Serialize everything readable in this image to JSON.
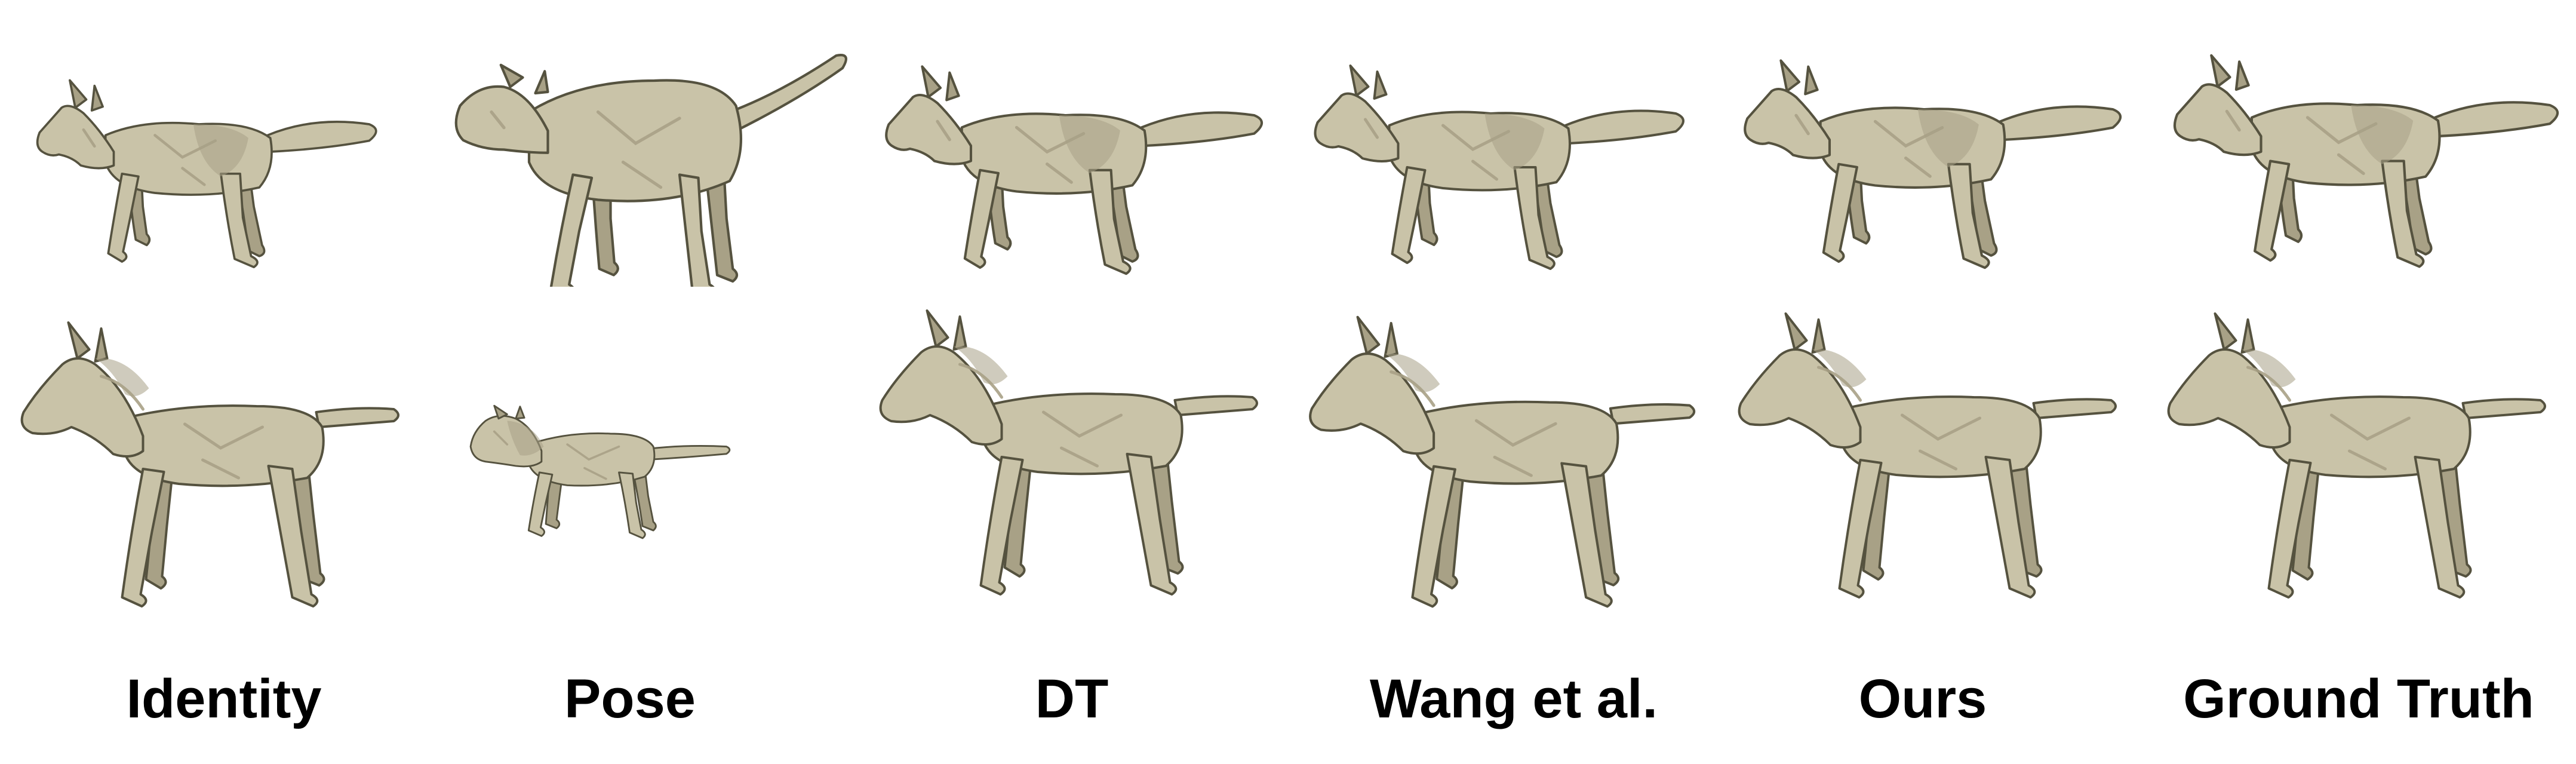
{
  "figure": {
    "mesh_fill": "#c9c3a8",
    "mesh_shade": "#a8a186",
    "mesh_edge": "#55523f",
    "columns": [
      {
        "label": "Identity"
      },
      {
        "label": "Pose"
      },
      {
        "label": "DT"
      },
      {
        "label": "Wang et al."
      },
      {
        "label": "Ours"
      },
      {
        "label": "Ground Truth"
      }
    ],
    "rows": [
      {
        "subject": "wolf"
      },
      {
        "subject": "horse"
      }
    ],
    "cells": [
      [
        {
          "model": "wolf",
          "variant": "identity"
        },
        {
          "model": "calf",
          "variant": "pose"
        },
        {
          "model": "wolf",
          "variant": "dt"
        },
        {
          "model": "wolf",
          "variant": "wang"
        },
        {
          "model": "wolf",
          "variant": "ours"
        },
        {
          "model": "wolf",
          "variant": "ground-truth"
        }
      ],
      [
        {
          "model": "horse",
          "variant": "identity"
        },
        {
          "model": "lion",
          "variant": "pose"
        },
        {
          "model": "horse",
          "variant": "dt"
        },
        {
          "model": "horse",
          "variant": "wang"
        },
        {
          "model": "horse",
          "variant": "ours"
        },
        {
          "model": "horse",
          "variant": "ground-truth"
        }
      ]
    ]
  }
}
